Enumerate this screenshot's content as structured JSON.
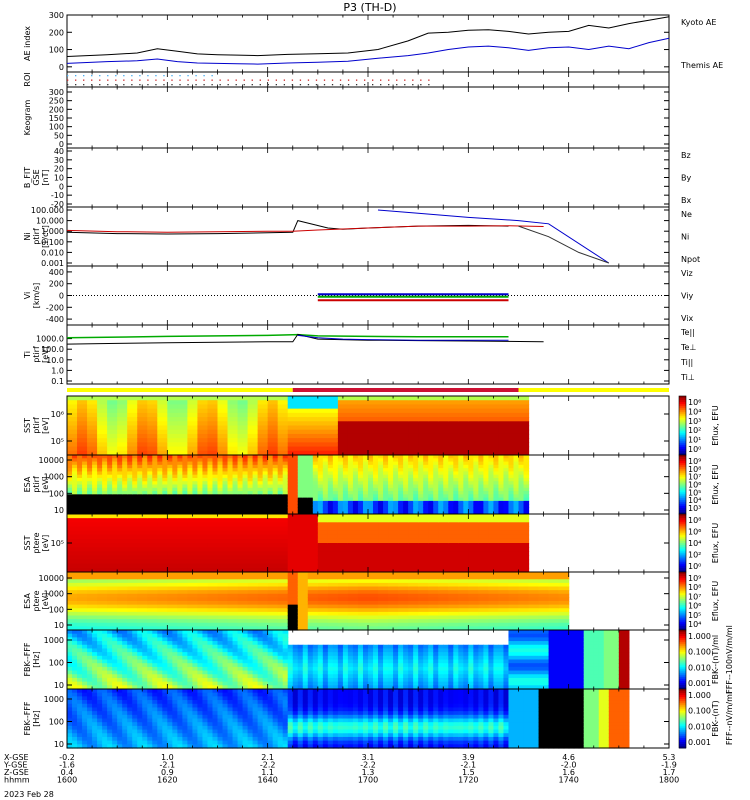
{
  "chart_data": {
    "type": "line",
    "title": "P3 (TH-D)",
    "date_label": "2023 Feb 28",
    "x_axis": {
      "row_labels": [
        "X-GSE",
        "Y-GSE",
        "Z-GSE",
        "hhmm"
      ],
      "ticks": [
        {
          "x": "-0.2",
          "y": "-1.6",
          "z": "0.4",
          "t": "1600"
        },
        {
          "x": "1.0",
          "y": "-2.1",
          "z": "0.9",
          "t": "1620"
        },
        {
          "x": "2.1",
          "y": "-2.2",
          "z": "1.1",
          "t": "1640"
        },
        {
          "x": "3.1",
          "y": "-2.2",
          "z": "1.3",
          "t": "1700"
        },
        {
          "x": "3.9",
          "y": "-2.1",
          "z": "1.5",
          "t": "1720"
        },
        {
          "x": "4.6",
          "y": "-2.0",
          "z": "1.6",
          "t": "1740"
        },
        {
          "x": "5.3",
          "y": "-1.9",
          "z": "1.7",
          "t": "1800"
        }
      ]
    },
    "panels": [
      {
        "id": "ae",
        "ylabel": "AE index",
        "yticks": [
          "300",
          "200",
          "100",
          "0"
        ],
        "ylim": [
          -30,
          300
        ],
        "legend": [
          {
            "label": "Kyoto AE",
            "color": "#0000cc"
          },
          {
            "label": "Themis AE",
            "color": "#000000"
          }
        ],
        "series": [
          {
            "name": "Themis AE",
            "color": "#000000",
            "t": [
              0,
              8,
              14,
              18,
              22,
              26,
              30,
              34,
              38,
              44,
              50,
              56,
              62,
              68,
              72,
              76,
              80,
              84,
              88,
              92,
              96,
              100,
              104,
              108,
              112,
              116,
              120
            ],
            "v": [
              60,
              70,
              80,
              105,
              90,
              75,
              70,
              68,
              65,
              72,
              76,
              80,
              100,
              150,
              195,
              200,
              212,
              215,
              205,
              190,
              200,
              205,
              240,
              225,
              250,
              270,
              290
            ]
          },
          {
            "name": "Kyoto AE",
            "color": "#0000cc",
            "t": [
              0,
              8,
              14,
              18,
              22,
              26,
              30,
              34,
              38,
              44,
              50,
              56,
              62,
              68,
              72,
              76,
              80,
              84,
              88,
              92,
              96,
              100,
              104,
              108,
              112,
              116,
              120
            ],
            "v": [
              20,
              30,
              35,
              45,
              30,
              22,
              20,
              18,
              16,
              22,
              26,
              32,
              50,
              65,
              80,
              100,
              115,
              120,
              110,
              95,
              110,
              115,
              100,
              120,
              105,
              140,
              165
            ]
          }
        ]
      },
      {
        "id": "roi",
        "ylabel": "ROI",
        "dot_rows": [
          {
            "t_end": 30,
            "color": "#44aaee"
          },
          {
            "t_end": 72,
            "color": "#cc2222"
          },
          {
            "t_end": 72,
            "color": "#333333"
          }
        ]
      },
      {
        "id": "keogram",
        "ylabel": "Keogram",
        "yticks": [
          "300",
          "250",
          "200",
          "150",
          "100",
          "50",
          "0"
        ]
      },
      {
        "id": "bfit",
        "ylabel": "B_FIT",
        "ylabel2": "GSE",
        "ylabel3": "[nT]",
        "yticks": [
          "40",
          "30",
          "20",
          "10",
          "0",
          "-10",
          "-20"
        ],
        "legend": [
          {
            "label": "Bz",
            "color": "#cc0000"
          },
          {
            "label": "By",
            "color": "#00aa00"
          },
          {
            "label": "Bx",
            "color": "#0000cc"
          }
        ]
      },
      {
        "id": "ni",
        "ylabel": "Ni",
        "ylabel2": "ptirf",
        "ylabel3": "[1/cc]",
        "yticks": [
          "100.000",
          "10.000",
          "1.000",
          "0.100",
          "0.010",
          "0.001"
        ],
        "log_range": [
          -3,
          2
        ],
        "legend": [
          {
            "label": "Ne",
            "color": "#cc0000"
          },
          {
            "label": "Ni",
            "color": "#000000"
          },
          {
            "label": "Npot",
            "color": "#0000cc"
          }
        ],
        "series": [
          {
            "name": "Ni",
            "color": "#000000",
            "t": [
              0,
              10,
              20,
              30,
              40,
              45,
              46,
              52,
              55,
              60,
              70,
              80,
              88
            ],
            "v": [
              0.8,
              0.6,
              0.55,
              0.6,
              0.7,
              0.8,
              10,
              2,
              1.5,
              2,
              3,
              3.5,
              3
            ]
          },
          {
            "name": "Ne",
            "color": "#cc0000",
            "t": [
              0,
              10,
              20,
              30,
              40,
              45,
              50,
              60,
              70,
              80,
              88,
              95
            ],
            "v": [
              1.2,
              0.9,
              0.8,
              0.9,
              1,
              1,
              1.3,
              2,
              3,
              3,
              3.2,
              2.8
            ]
          },
          {
            "name": "Npot",
            "color": "#0000cc",
            "t": [
              62,
              70,
              80,
              90,
              96,
              108
            ],
            "v": [
              100,
              50,
              20,
              10,
              5,
              0.001
            ]
          },
          {
            "name": "decay",
            "color": "#333333",
            "t": [
              90,
              96,
              102,
              108
            ],
            "v": [
              3,
              0.3,
              0.01,
              0.001
            ]
          }
        ]
      },
      {
        "id": "vi",
        "ylabel": "Vi",
        "ylabel3": "[km/s]",
        "yticks": [
          "400",
          "200",
          "0",
          "-200",
          "-400"
        ],
        "ylim": [
          -500,
          500
        ],
        "legend": [
          {
            "label": "Viz",
            "color": "#cc0000"
          },
          {
            "label": "Viy",
            "color": "#00aa00"
          },
          {
            "label": "Vix",
            "color": "#0000cc"
          }
        ],
        "series": [
          {
            "name": "Vix",
            "color": "#0000cc",
            "t": [
              50,
              88
            ],
            "v": [
              20,
              20
            ]
          },
          {
            "name": "Viy",
            "color": "#00aa00",
            "t": [
              50,
              88
            ],
            "v": [
              -20,
              -20
            ]
          },
          {
            "name": "Viz",
            "color": "#cc0000",
            "t": [
              50,
              88
            ],
            "v": [
              -80,
              -80
            ]
          }
        ]
      },
      {
        "id": "ti",
        "ylabel": "Ti",
        "ylabel2": "ptirf",
        "ylabel3": "[eV]",
        "yticks": [
          "1000.0",
          "100.0",
          "10.0",
          "1.0",
          "0.1"
        ],
        "log_range": [
          -1,
          4
        ],
        "legend": [
          {
            "label": "Te||",
            "color": "#000000"
          },
          {
            "label": "Te⊥",
            "color": "#cc0000"
          },
          {
            "label": "Ti||",
            "color": "#00aa00"
          },
          {
            "label": "Ti⊥",
            "color": "#0000cc"
          }
        ],
        "series": [
          {
            "name": "Ti||",
            "color": "#00aa00",
            "t": [
              0,
              10,
              20,
              30,
              40,
              46,
              50,
              60,
              70,
              80,
              88
            ],
            "v": [
              1200,
              1400,
              1600,
              1800,
              2000,
              2400,
              1800,
              1600,
              1500,
              1500,
              1500
            ]
          },
          {
            "name": "Te||",
            "color": "#000000",
            "t": [
              0,
              10,
              20,
              30,
              40,
              45,
              46,
              50,
              60,
              70,
              80,
              95
            ],
            "v": [
              300,
              350,
              400,
              450,
              500,
              500,
              2500,
              900,
              700,
              650,
              600,
              500
            ]
          },
          {
            "name": "Ti⊥",
            "color": "#0000cc",
            "t": [
              46,
              50,
              55,
              60,
              70,
              80,
              88
            ],
            "v": [
              2000,
              1200,
              900,
              800,
              700,
              700,
              700
            ]
          }
        ]
      },
      {
        "id": "sst_i",
        "ylabel": "SST",
        "ylabel2": "ptirf",
        "ylabel3": "[eV]",
        "yticks": [
          "10⁶",
          "10⁵"
        ],
        "cbar_ticks": [
          "10⁶",
          "10⁴",
          "10³",
          "10²",
          "10¹",
          "10⁰"
        ],
        "cbar_label": "Eflux, EFU"
      },
      {
        "id": "esa_i",
        "ylabel": "ESA",
        "ylabel2": "ptirf",
        "ylabel3": "[eV]",
        "yticks": [
          "10000",
          "1000",
          "100",
          "10"
        ],
        "cbar_ticks": [
          "10⁹",
          "10⁸",
          "10⁷",
          "10⁶",
          "10⁵",
          "10⁴",
          "10³"
        ],
        "cbar_label": "Eflux, EFU"
      },
      {
        "id": "sst_e",
        "ylabel": "SST",
        "ylabel2": "ptere",
        "ylabel3": "[eV]",
        "yticks": [
          "10⁵"
        ],
        "cbar_ticks": [
          "10⁸",
          "10⁶",
          "10⁴",
          "10²",
          "10⁰"
        ],
        "cbar_label": "Eflux, EFU"
      },
      {
        "id": "esa_e",
        "ylabel": "ESA",
        "ylabel2": "ptere",
        "ylabel3": "[eV]",
        "yticks": [
          "10000",
          "1000",
          "100",
          "10"
        ],
        "cbar_ticks": [
          "10⁹",
          "10⁸",
          "10⁷",
          "10⁶",
          "10⁵",
          "10⁴"
        ],
        "cbar_label": "Eflux, EFU"
      },
      {
        "id": "fbk1",
        "ylabel": "FBK--FFF",
        "ylabel3": "[Hz]",
        "yticks": [
          "1000",
          "100",
          "10"
        ],
        "cbar_ticks": [
          "1.000",
          "0.100",
          "0.010",
          "0.001"
        ],
        "cbar_label": "FBK--(nT)/ml",
        "cbar_label2": "FFF--100nV/m/ml"
      },
      {
        "id": "fbk2",
        "ylabel": "FBK--FFF",
        "ylabel3": "[Hz]",
        "yticks": [
          "1000",
          "100",
          "10"
        ],
        "cbar_ticks": [
          "1.000",
          "0.100",
          "0.010",
          "0.001"
        ],
        "cbar_label": "FBK--(nT)",
        "cbar_label2": "FFF--nV/m/ml"
      }
    ],
    "mode_bar": [
      {
        "t_start": 0,
        "t_end": 45,
        "color": "#ffff00"
      },
      {
        "t_start": 45,
        "t_end": 90,
        "color": "#cc1133"
      },
      {
        "t_start": 90,
        "t_end": 120,
        "color": "#ffff00"
      }
    ]
  }
}
